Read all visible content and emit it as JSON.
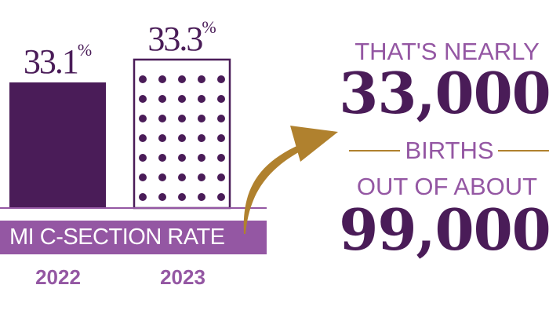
{
  "chart_data": {
    "type": "bar",
    "title": "MI C-SECTION RATE",
    "categories": [
      "2022",
      "2023"
    ],
    "values": [
      33.1,
      33.3
    ],
    "value_labels": [
      "33.1",
      "33.3"
    ],
    "unit": "%",
    "styles": [
      "solid",
      "dotted"
    ]
  },
  "callout": {
    "line1": "THAT'S NEARLY",
    "number1": "33,000",
    "line2": "BIRTHS",
    "line3": "OUT OF ABOUT",
    "number2": "99,000"
  },
  "colors": {
    "dark_purple": "#4a1c58",
    "light_purple": "#9457a3",
    "gold": "#b0812e"
  }
}
